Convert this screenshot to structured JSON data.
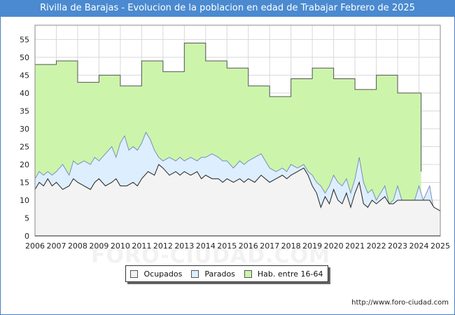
{
  "title": "Rivilla de Barajas - Evolucion de la poblacion en edad de Trabajar Febrero de 2025",
  "url": "http://www.foro-ciudad.com",
  "watermark": "FORO-CIUDAD.COM",
  "colors": {
    "hab": "#ccf5ab",
    "parados": "#ddeeff",
    "ocupados": "#f3f3f3",
    "title_bg": "#4b8ad0"
  },
  "legend": [
    {
      "label": "Ocupados",
      "color": "#f3f3f3"
    },
    {
      "label": "Parados",
      "color": "#ddeeff"
    },
    {
      "label": "Hab. entre 16-64",
      "color": "#ccf5ab"
    }
  ],
  "chart_data": {
    "type": "area",
    "title": "Rivilla de Barajas - Evolucion de la poblacion en edad de Trabajar Febrero de 2025",
    "x_ticks": [
      "2006",
      "2007",
      "2008",
      "2009",
      "2010",
      "2011",
      "2012",
      "2013",
      "2014",
      "2015",
      "2016",
      "2017",
      "2018",
      "2019",
      "2020",
      "2021",
      "2022",
      "2023",
      "2024",
      "2025"
    ],
    "y_ticks": [
      0,
      5,
      10,
      15,
      20,
      25,
      30,
      35,
      40,
      45,
      50,
      55
    ],
    "xlim": [
      2006,
      2025
    ],
    "ylim": [
      0,
      59
    ],
    "series": [
      {
        "name": "Hab. entre 16-64",
        "step": true,
        "points": [
          [
            2006,
            48
          ],
          [
            2007,
            49
          ],
          [
            2008,
            43
          ],
          [
            2009,
            45
          ],
          [
            2010,
            42
          ],
          [
            2011,
            49
          ],
          [
            2012,
            46
          ],
          [
            2013,
            54
          ],
          [
            2014,
            49
          ],
          [
            2015,
            47
          ],
          [
            2016,
            42
          ],
          [
            2017,
            39
          ],
          [
            2018,
            44
          ],
          [
            2019,
            47
          ],
          [
            2020,
            44
          ],
          [
            2021,
            41
          ],
          [
            2022,
            45
          ],
          [
            2023,
            40
          ],
          [
            2024.1,
            18
          ]
        ]
      },
      {
        "name": "Parados",
        "points": [
          [
            2006,
            16
          ],
          [
            2006.2,
            18
          ],
          [
            2006.4,
            17
          ],
          [
            2006.6,
            18
          ],
          [
            2006.8,
            17
          ],
          [
            2007,
            18
          ],
          [
            2007.3,
            20
          ],
          [
            2007.6,
            17
          ],
          [
            2007.8,
            21
          ],
          [
            2008,
            20
          ],
          [
            2008.3,
            21
          ],
          [
            2008.6,
            20
          ],
          [
            2008.8,
            22
          ],
          [
            2009,
            21
          ],
          [
            2009.3,
            23
          ],
          [
            2009.6,
            25
          ],
          [
            2009.8,
            22
          ],
          [
            2010,
            26
          ],
          [
            2010.2,
            28
          ],
          [
            2010.4,
            24
          ],
          [
            2010.6,
            25
          ],
          [
            2010.8,
            24
          ],
          [
            2011,
            26
          ],
          [
            2011.2,
            29
          ],
          [
            2011.4,
            27
          ],
          [
            2011.6,
            24
          ],
          [
            2011.8,
            22
          ],
          [
            2012,
            21
          ],
          [
            2012.3,
            22
          ],
          [
            2012.6,
            21
          ],
          [
            2012.8,
            22
          ],
          [
            2013,
            21
          ],
          [
            2013.3,
            22
          ],
          [
            2013.6,
            21
          ],
          [
            2013.8,
            22
          ],
          [
            2014,
            22
          ],
          [
            2014.3,
            23
          ],
          [
            2014.6,
            22
          ],
          [
            2014.8,
            21
          ],
          [
            2015,
            21
          ],
          [
            2015.3,
            19
          ],
          [
            2015.6,
            21
          ],
          [
            2015.8,
            20
          ],
          [
            2016,
            21
          ],
          [
            2016.3,
            22
          ],
          [
            2016.6,
            23
          ],
          [
            2016.8,
            21
          ],
          [
            2017,
            19
          ],
          [
            2017.3,
            18
          ],
          [
            2017.6,
            19
          ],
          [
            2017.8,
            18
          ],
          [
            2018,
            20
          ],
          [
            2018.3,
            19
          ],
          [
            2018.6,
            20
          ],
          [
            2018.8,
            18
          ],
          [
            2019,
            17
          ],
          [
            2019.2,
            15
          ],
          [
            2019.4,
            14
          ],
          [
            2019.6,
            12
          ],
          [
            2019.8,
            14
          ],
          [
            2020,
            17
          ],
          [
            2020.2,
            15
          ],
          [
            2020.4,
            14
          ],
          [
            2020.6,
            16
          ],
          [
            2020.8,
            12
          ],
          [
            2021,
            16
          ],
          [
            2021.2,
            22
          ],
          [
            2021.4,
            15
          ],
          [
            2021.6,
            12
          ],
          [
            2021.8,
            13
          ],
          [
            2022,
            10
          ],
          [
            2022.2,
            12
          ],
          [
            2022.4,
            14
          ],
          [
            2022.6,
            9
          ],
          [
            2022.8,
            10
          ],
          [
            2023,
            14
          ],
          [
            2023.2,
            10
          ],
          [
            2023.5,
            10
          ],
          [
            2023.8,
            10
          ],
          [
            2024,
            14
          ],
          [
            2024.2,
            10
          ],
          [
            2024.5,
            14
          ],
          [
            2024.7,
            7
          ],
          [
            2025,
            7
          ]
        ]
      },
      {
        "name": "Ocupados",
        "points": [
          [
            2006,
            13
          ],
          [
            2006.2,
            15
          ],
          [
            2006.4,
            14
          ],
          [
            2006.6,
            16
          ],
          [
            2006.8,
            14
          ],
          [
            2007,
            15
          ],
          [
            2007.3,
            13
          ],
          [
            2007.6,
            14
          ],
          [
            2007.8,
            16
          ],
          [
            2008,
            15
          ],
          [
            2008.3,
            14
          ],
          [
            2008.6,
            13
          ],
          [
            2008.8,
            15
          ],
          [
            2009,
            16
          ],
          [
            2009.3,
            14
          ],
          [
            2009.6,
            15
          ],
          [
            2009.8,
            16
          ],
          [
            2010,
            14
          ],
          [
            2010.3,
            14
          ],
          [
            2010.6,
            15
          ],
          [
            2010.8,
            14
          ],
          [
            2011,
            16
          ],
          [
            2011.3,
            18
          ],
          [
            2011.6,
            17
          ],
          [
            2011.8,
            20
          ],
          [
            2012,
            19
          ],
          [
            2012.3,
            17
          ],
          [
            2012.6,
            18
          ],
          [
            2012.8,
            17
          ],
          [
            2013,
            18
          ],
          [
            2013.3,
            17
          ],
          [
            2013.6,
            18
          ],
          [
            2013.8,
            16
          ],
          [
            2014,
            17
          ],
          [
            2014.3,
            16
          ],
          [
            2014.6,
            16
          ],
          [
            2014.8,
            15
          ],
          [
            2015,
            16
          ],
          [
            2015.3,
            15
          ],
          [
            2015.6,
            16
          ],
          [
            2015.8,
            15
          ],
          [
            2016,
            16
          ],
          [
            2016.3,
            15
          ],
          [
            2016.6,
            17
          ],
          [
            2016.8,
            16
          ],
          [
            2017,
            15
          ],
          [
            2017.3,
            16
          ],
          [
            2017.6,
            17
          ],
          [
            2017.8,
            16
          ],
          [
            2018,
            17
          ],
          [
            2018.3,
            18
          ],
          [
            2018.6,
            19
          ],
          [
            2018.8,
            17
          ],
          [
            2019,
            14
          ],
          [
            2019.2,
            12
          ],
          [
            2019.4,
            8
          ],
          [
            2019.6,
            11
          ],
          [
            2019.8,
            9
          ],
          [
            2020,
            13
          ],
          [
            2020.2,
            10
          ],
          [
            2020.4,
            9
          ],
          [
            2020.6,
            12
          ],
          [
            2020.8,
            8
          ],
          [
            2021,
            12
          ],
          [
            2021.2,
            15
          ],
          [
            2021.4,
            9
          ],
          [
            2021.6,
            8
          ],
          [
            2021.8,
            10
          ],
          [
            2022,
            9
          ],
          [
            2022.2,
            10
          ],
          [
            2022.4,
            11
          ],
          [
            2022.6,
            9
          ],
          [
            2022.8,
            9
          ],
          [
            2023,
            10
          ],
          [
            2023.2,
            10
          ],
          [
            2023.5,
            10
          ],
          [
            2023.8,
            10
          ],
          [
            2024,
            10
          ],
          [
            2024.2,
            10
          ],
          [
            2024.5,
            10
          ],
          [
            2024.7,
            8
          ],
          [
            2025,
            7
          ]
        ]
      }
    ]
  }
}
